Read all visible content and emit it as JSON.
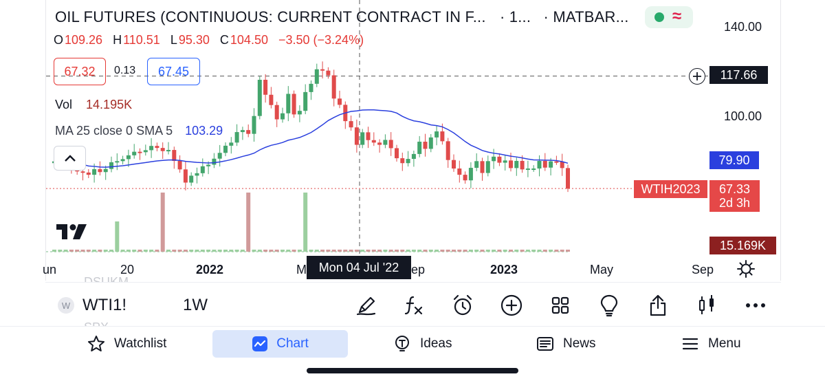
{
  "header": {
    "title": "OIL FUTURES (CONTINUOUS: CURRENT CONTRACT IN F...",
    "interval_short": "· 1...",
    "source": "· MATBAR...",
    "ohlc": {
      "o_label": "O",
      "o": "109.26",
      "h_label": "H",
      "h": "110.51",
      "l_label": "L",
      "l": "95.30",
      "c_label": "C",
      "c": "104.50",
      "change": "−3.50 (−3.24%)"
    },
    "bid": "67.32",
    "spread": "0.13",
    "ask": "67.45",
    "volume_label": "Vol",
    "volume_value": "14.195K",
    "ma_label": "MA 25 close 0 SMA 5",
    "ma_value": "103.29"
  },
  "price_axis": {
    "labels": [
      "140.00",
      "100.00"
    ],
    "crosshair_price": "117.66",
    "ma_price": "79.90",
    "symbol_tag": "WTIH2023",
    "last_price": "67.33",
    "countdown": "2d 3h",
    "volume_tag": "15.169K"
  },
  "time_axis": {
    "labels": [
      {
        "text": "un",
        "bold": false
      },
      {
        "text": "20",
        "bold": false
      },
      {
        "text": "2022",
        "bold": true
      },
      {
        "text": "M",
        "bold": false
      },
      {
        "text": "ep",
        "bold": false
      },
      {
        "text": "2023",
        "bold": true
      },
      {
        "text": "May",
        "bold": false
      },
      {
        "text": "Sep",
        "bold": false
      }
    ],
    "crosshair_date": "Mon 04 Jul '22"
  },
  "ghost_rows": [
    "DSUKM",
    "SPX"
  ],
  "toolbar": {
    "symbol_icon_letter": "W",
    "symbol": "WTI1!",
    "interval": "1W",
    "icons": [
      "draw-icon",
      "indicators-icon",
      "alert-icon",
      "add-icon",
      "layouts-icon",
      "ideas-bulb-icon",
      "share-icon",
      "candle-type-icon",
      "more-icon"
    ]
  },
  "nav": {
    "watchlist": "Watchlist",
    "chart": "Chart",
    "ideas": "Ideas",
    "news": "News",
    "menu": "Menu"
  },
  "colors": {
    "up": "#43a56c",
    "down": "#e04b4b",
    "ma": "#2a3fde",
    "accent": "#2962ff"
  },
  "chart_data": {
    "type": "candlestick",
    "title": "OIL FUTURES (CONTINUOUS: CURRENT CONTRACT IN F...",
    "interval": "1W",
    "y_axis_ticks": [
      140,
      100
    ],
    "series": [
      {
        "name": "price",
        "close_points": [
          79.5,
          80.8,
          81.2,
          77.5,
          75.0,
          74.5,
          73.5,
          76.0,
          74.7,
          76.1,
          79.1,
          79.6,
          80.5,
          82.2,
          83.8,
          83.6,
          84.5,
          86.4,
          85.5,
          84.1,
          84.6,
          79.7,
          75.9,
          70.0,
          73.1,
          74.2,
          77.3,
          78.0,
          80.7,
          83.3,
          86.5,
          87.9,
          92.6,
          93.5,
          91.8,
          99.8,
          116.0,
          109.3,
          104.7,
          98.3,
          101.0,
          109.7,
          100.5,
          102.1,
          110.5,
          114.2,
          120.7,
          120.1,
          118.0,
          107.6,
          104.8,
          97.5,
          94.7,
          86.9,
          92.5,
          89.0,
          87.9,
          86.9,
          89.1,
          85.4,
          80.9,
          78.7,
          80.6,
          82.8,
          88.3,
          85.1,
          90.2,
          92.9,
          88.5,
          80.1,
          76.3,
          73.5,
          71.0,
          76.6,
          79.6,
          74.3,
          79.6,
          81.6,
          78.9,
          79.9,
          76.5,
          79.7,
          75.9,
          76.3,
          76.3,
          79.7,
          76.7,
          79.5,
          79.4,
          76.5,
          67.3
        ]
      },
      {
        "name": "MA 25",
        "values_note": "",
        "last": 79.9
      }
    ],
    "last_price": 67.33,
    "crosshair_price": 117.66,
    "ma_last": 79.9
  }
}
